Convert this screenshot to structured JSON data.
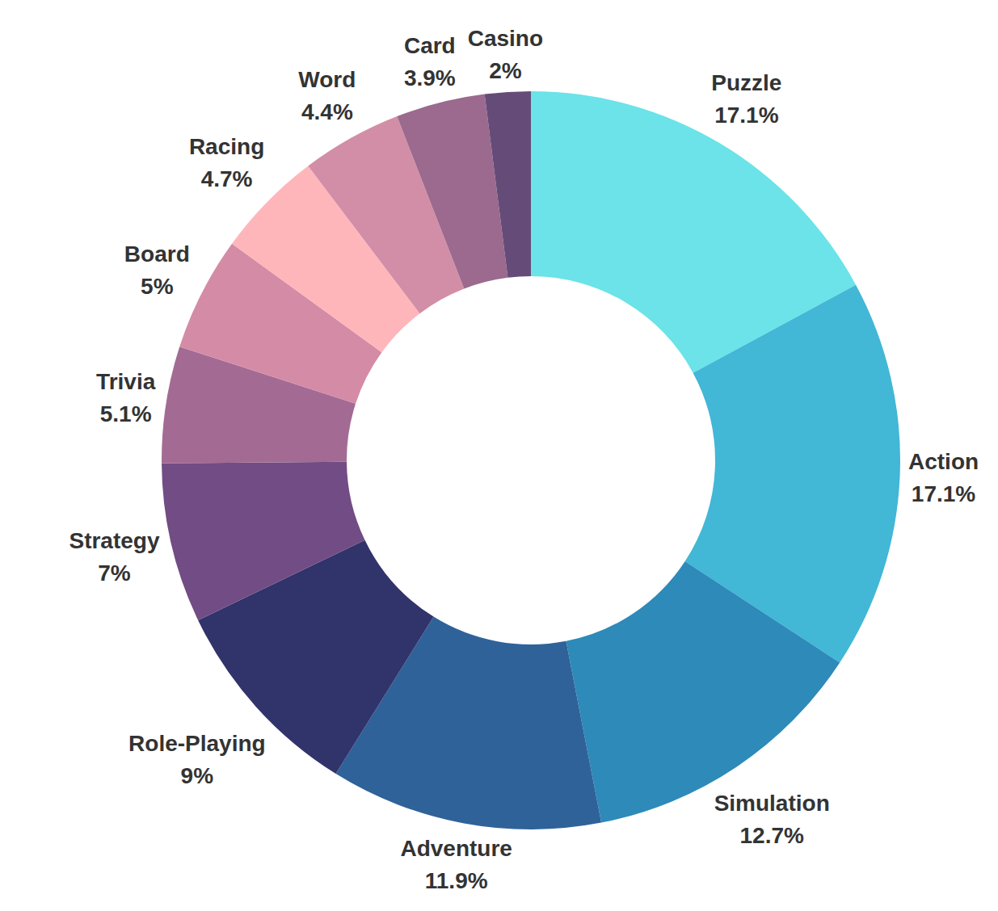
{
  "chart_data": {
    "type": "donut",
    "categories": [
      "Puzzle",
      "Action",
      "Simulation",
      "Adventure",
      "Role-Playing",
      "Strategy",
      "Trivia",
      "Board",
      "Racing",
      "Word",
      "Card",
      "Casino"
    ],
    "values": [
      17.1,
      17.1,
      12.7,
      11.9,
      9,
      7,
      5.1,
      5,
      4.7,
      4.4,
      3.9,
      2
    ],
    "value_labels": [
      "17.1%",
      "17.1%",
      "12.7%",
      "11.9%",
      "9%",
      "7%",
      "5.1%",
      "5%",
      "4.7%",
      "4.4%",
      "3.9%",
      "2%"
    ],
    "colors": [
      "#6be3e8",
      "#42b7d6",
      "#2e8ab8",
      "#2f6299",
      "#31336b",
      "#724c84",
      "#a36b94",
      "#d48ba6",
      "#ffb6bb",
      "#d28ea6",
      "#9b6a8e",
      "#654c78"
    ],
    "data_labels": true
  }
}
